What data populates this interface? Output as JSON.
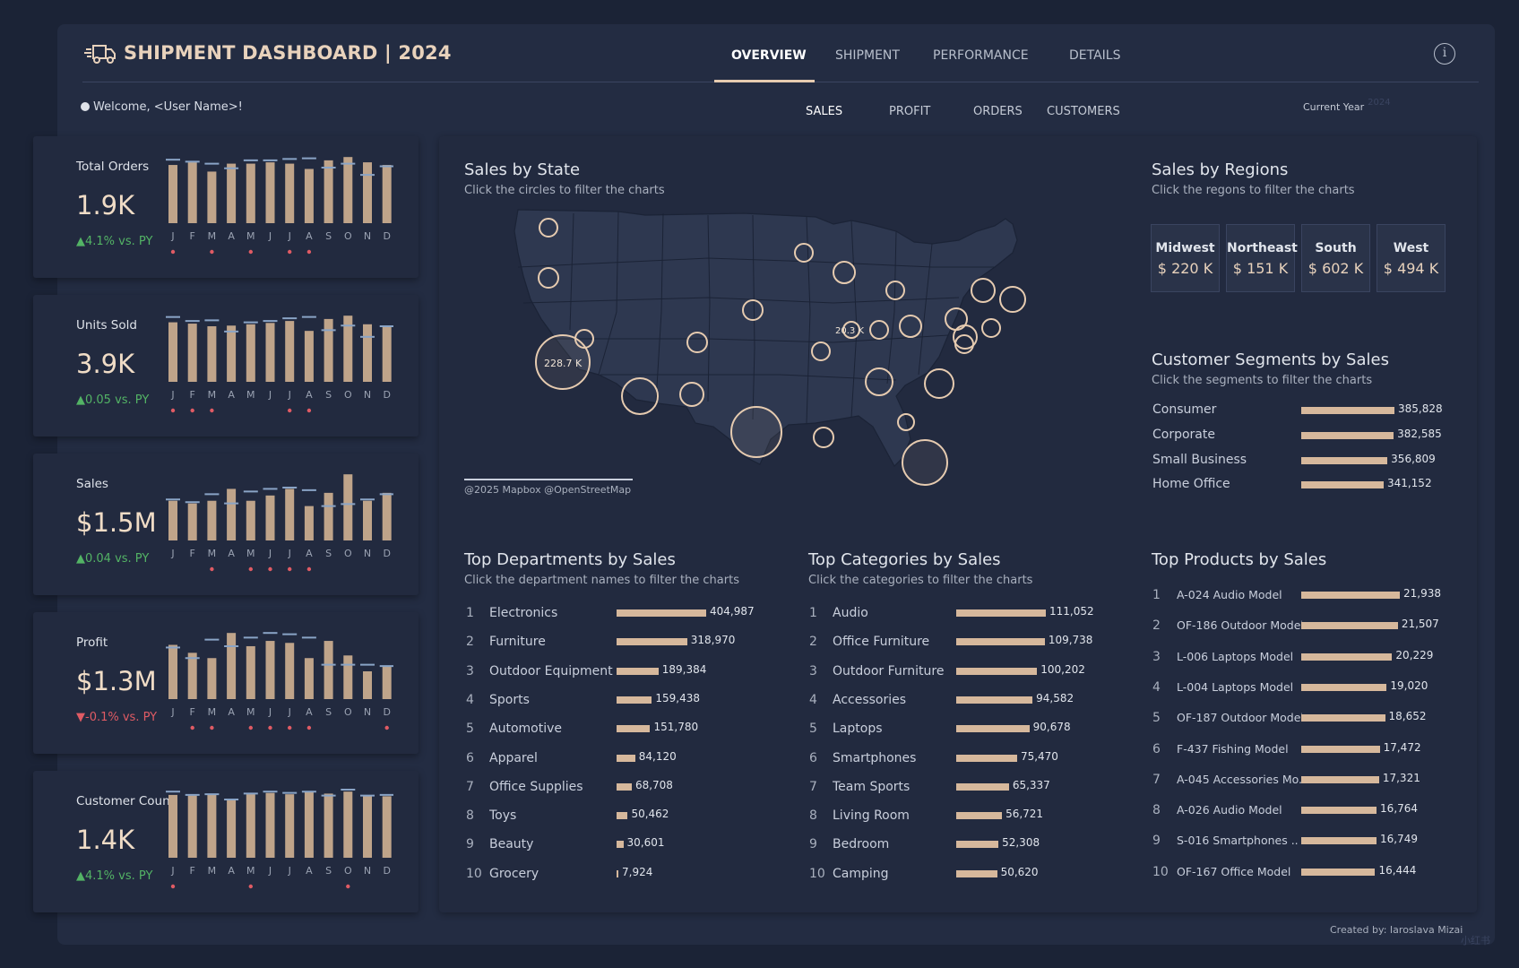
{
  "app": {
    "title": "SHIPMENT DASHBOARD | 2024"
  },
  "nav": {
    "tabs": [
      "OVERVIEW",
      "SHIPMENT",
      "PERFORMANCE",
      "DETAILS"
    ],
    "active": 0
  },
  "welcome": "Welcome, <User Name>!",
  "metric_tabs": {
    "items": [
      "SALES",
      "PROFIT",
      "ORDERS",
      "CUSTOMERS"
    ],
    "active": 0
  },
  "current_year": {
    "label": "Current Year",
    "value": "2024"
  },
  "months": [
    "J",
    "F",
    "M",
    "A",
    "M",
    "J",
    "J",
    "A",
    "S",
    "O",
    "N",
    "D"
  ],
  "colors": {
    "bar": "#bfa48a",
    "prior": "#8aa4c6",
    "dot": "#e05b64",
    "up": "#53b365",
    "down": "#e05b64",
    "accent": "#e8d2bc"
  },
  "kpis": [
    {
      "label": "Total Orders",
      "value": "1.9K",
      "delta": "4.1% vs. PY",
      "direction": "up",
      "bars": [
        0.88,
        0.92,
        0.78,
        0.9,
        0.9,
        0.92,
        0.9,
        0.82,
        0.95,
        1.0,
        0.92,
        0.88
      ],
      "prior": [
        0.96,
        0.93,
        0.9,
        0.83,
        0.95,
        0.95,
        0.97,
        0.98,
        0.84,
        0.9,
        0.73,
        0.86
      ],
      "dots": [
        1,
        0,
        1,
        0,
        1,
        0,
        1,
        1,
        0,
        0,
        0,
        0
      ]
    },
    {
      "label": "Units Sold",
      "value": "3.9K",
      "delta": "0.05 vs. PY",
      "direction": "up",
      "bars": [
        0.9,
        0.88,
        0.84,
        0.85,
        0.87,
        0.89,
        0.92,
        0.77,
        0.95,
        1.0,
        0.87,
        0.85
      ],
      "prior": [
        0.98,
        0.92,
        0.93,
        0.76,
        0.9,
        0.92,
        0.96,
        0.98,
        0.78,
        0.85,
        0.68,
        0.84
      ],
      "dots": [
        1,
        1,
        1,
        0,
        0,
        0,
        1,
        1,
        0,
        0,
        0,
        0
      ]
    },
    {
      "label": "Sales",
      "value": "$1.5M",
      "delta": "0.04 vs. PY",
      "direction": "up",
      "bars": [
        0.6,
        0.56,
        0.6,
        0.78,
        0.6,
        0.68,
        0.78,
        0.52,
        0.72,
        1.0,
        0.6,
        0.72
      ],
      "prior": [
        0.62,
        0.58,
        0.7,
        0.56,
        0.74,
        0.78,
        0.8,
        0.76,
        0.52,
        0.55,
        0.62,
        0.7
      ],
      "dots": [
        0,
        0,
        1,
        0,
        1,
        1,
        1,
        1,
        0,
        0,
        0,
        0
      ]
    },
    {
      "label": "Profit",
      "value": "$1.3M",
      "delta": "-0.1% vs. PY",
      "direction": "down",
      "bars": [
        0.82,
        0.7,
        0.62,
        1.0,
        0.8,
        0.88,
        0.85,
        0.62,
        0.88,
        0.66,
        0.42,
        0.5
      ],
      "prior": [
        0.78,
        0.62,
        0.9,
        0.8,
        0.93,
        1.0,
        0.98,
        0.93,
        0.52,
        0.52,
        0.52,
        0.5
      ],
      "dots": [
        0,
        1,
        1,
        0,
        1,
        1,
        1,
        1,
        0,
        0,
        0,
        1
      ]
    },
    {
      "label": "Customer Count",
      "value": "1.4K",
      "delta": "4.1% vs. PY",
      "direction": "up",
      "bars": [
        0.95,
        0.94,
        0.96,
        0.87,
        0.96,
        0.98,
        0.96,
        0.99,
        0.97,
        1.0,
        0.93,
        0.93
      ],
      "prior": [
        1.0,
        0.95,
        0.96,
        0.88,
        0.97,
        1.0,
        0.98,
        1.0,
        0.94,
        1.03,
        0.94,
        0.95
      ],
      "dots": [
        1,
        0,
        0,
        0,
        1,
        0,
        0,
        0,
        0,
        1,
        0,
        0
      ]
    }
  ],
  "sales_by_state": {
    "title": "Sales by State",
    "subtitle": "Click the circles to filter the charts",
    "attribution": "@2025 Mapbox @OpenStreetMap",
    "labels": [
      "228.7 K",
      "20.3 K"
    ]
  },
  "sales_by_regions": {
    "title": "Sales by Regions",
    "subtitle": "Click the regons to filter the charts",
    "regions": [
      {
        "name": "Midwest",
        "value": "$ 220 K"
      },
      {
        "name": "Northeast",
        "value": "$ 151 K"
      },
      {
        "name": "South",
        "value": "$ 602 K"
      },
      {
        "name": "West",
        "value": "$ 494 K"
      }
    ]
  },
  "customer_segments": {
    "title": "Customer Segments  by Sales",
    "subtitle": "Click the segments to filter the charts",
    "rows": [
      {
        "name": "Consumer",
        "value": 385828,
        "label": "385,828"
      },
      {
        "name": "Corporate",
        "value": 382585,
        "label": "382,585"
      },
      {
        "name": "Small Business",
        "value": 356809,
        "label": "356,809"
      },
      {
        "name": "Home Office",
        "value": 341152,
        "label": "341,152"
      }
    ]
  },
  "top_departments": {
    "title": "Top Departments by Sales",
    "subtitle": "Click the department names to filter the charts",
    "rows": [
      {
        "rank": "1",
        "name": "Electronics",
        "value": 404987,
        "label": "404,987"
      },
      {
        "rank": "2",
        "name": "Furniture",
        "value": 318970,
        "label": "318,970"
      },
      {
        "rank": "3",
        "name": "Outdoor Equipment",
        "value": 189384,
        "label": "189,384"
      },
      {
        "rank": "4",
        "name": "Sports",
        "value": 159438,
        "label": "159,438"
      },
      {
        "rank": "5",
        "name": "Automotive",
        "value": 151780,
        "label": "151,780"
      },
      {
        "rank": "6",
        "name": "Apparel",
        "value": 84120,
        "label": "84,120"
      },
      {
        "rank": "7",
        "name": "Office Supplies",
        "value": 68708,
        "label": "68,708"
      },
      {
        "rank": "8",
        "name": "Toys",
        "value": 50462,
        "label": "50,462"
      },
      {
        "rank": "9",
        "name": "Beauty",
        "value": 30601,
        "label": "30,601"
      },
      {
        "rank": "10",
        "name": "Grocery",
        "value": 7924,
        "label": "7,924"
      }
    ]
  },
  "top_categories": {
    "title": "Top Categories by Sales",
    "subtitle": "Click the categories to filter the charts",
    "rows": [
      {
        "rank": "1",
        "name": "Audio",
        "value": 111052,
        "label": "111,052"
      },
      {
        "rank": "2",
        "name": "Office Furniture",
        "value": 109738,
        "label": "109,738"
      },
      {
        "rank": "3",
        "name": "Outdoor Furniture",
        "value": 100202,
        "label": "100,202"
      },
      {
        "rank": "4",
        "name": "Accessories",
        "value": 94582,
        "label": "94,582"
      },
      {
        "rank": "5",
        "name": "Laptops",
        "value": 90678,
        "label": "90,678"
      },
      {
        "rank": "6",
        "name": "Smartphones",
        "value": 75470,
        "label": "75,470"
      },
      {
        "rank": "7",
        "name": "Team Sports",
        "value": 65337,
        "label": "65,337"
      },
      {
        "rank": "8",
        "name": "Living Room",
        "value": 56721,
        "label": "56,721"
      },
      {
        "rank": "9",
        "name": "Bedroom",
        "value": 52308,
        "label": "52,308"
      },
      {
        "rank": "10",
        "name": "Camping",
        "value": 50620,
        "label": "50,620"
      }
    ]
  },
  "top_products": {
    "title": "Top Products by Sales",
    "rows": [
      {
        "rank": "1",
        "name": "A-024 Audio Model",
        "value": 21938,
        "label": "21,938"
      },
      {
        "rank": "2",
        "name": "OF-186 Outdoor Model",
        "value": 21507,
        "label": "21,507"
      },
      {
        "rank": "3",
        "name": "L-006 Laptops Model",
        "value": 20229,
        "label": "20,229"
      },
      {
        "rank": "4",
        "name": "L-004 Laptops Model",
        "value": 19020,
        "label": "19,020"
      },
      {
        "rank": "5",
        "name": "OF-187 Outdoor Model",
        "value": 18652,
        "label": "18,652"
      },
      {
        "rank": "6",
        "name": "F-437 Fishing Model",
        "value": 17472,
        "label": "17,472"
      },
      {
        "rank": "7",
        "name": "A-045 Accessories Mo..",
        "value": 17321,
        "label": "17,321"
      },
      {
        "rank": "8",
        "name": "A-026 Audio Model",
        "value": 16764,
        "label": "16,764"
      },
      {
        "rank": "9",
        "name": "S-016 Smartphones ..",
        "value": 16749,
        "label": "16,749"
      },
      {
        "rank": "10",
        "name": "OF-167 Office Model",
        "value": 16444,
        "label": "16,444"
      }
    ]
  },
  "footer": {
    "credit": "Created by:  Iaroslava Mizai"
  },
  "watermark": "小红书"
}
